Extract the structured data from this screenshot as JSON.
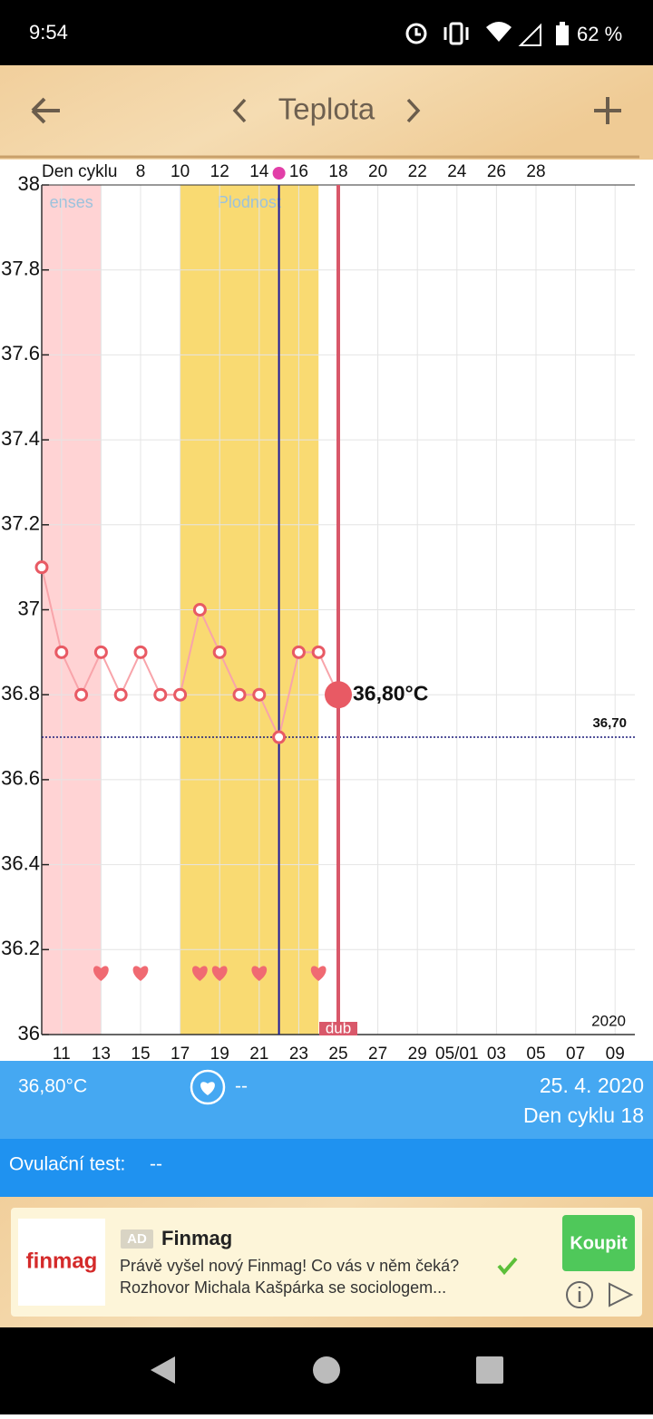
{
  "status_bar": {
    "time": "9:54",
    "battery": "62 %"
  },
  "toolbar": {
    "title": "Teplota"
  },
  "chart_data": {
    "type": "line",
    "x_axis_label": "Den cyklu",
    "x": [
      3,
      4,
      5,
      6,
      7,
      8,
      9,
      10,
      11,
      12,
      13,
      14,
      15,
      16,
      17,
      18
    ],
    "values": [
      37.1,
      36.9,
      36.8,
      36.9,
      36.8,
      36.9,
      36.8,
      36.8,
      37.0,
      36.9,
      36.8,
      36.8,
      36.7,
      36.9,
      36.9,
      36.8
    ],
    "value_labels": [
      null,
      null,
      null,
      null,
      null,
      null,
      null,
      null,
      null,
      null,
      null,
      null,
      null,
      null,
      null,
      "36,80°C"
    ],
    "color": "#e85a64",
    "line_color": "#f8a4aa",
    "xlim": [
      3,
      33
    ],
    "ylim": [
      36,
      38
    ],
    "yticks": [
      36,
      36.2,
      36.4,
      36.6,
      36.8,
      37,
      37.2,
      37.4,
      37.6,
      37.8,
      38
    ],
    "xticks": [
      8,
      10,
      12,
      14,
      16,
      18,
      20,
      22,
      24,
      26,
      28
    ],
    "date_ticks": [
      {
        "value": 4,
        "label": "11"
      },
      {
        "value": 6,
        "label": "13"
      },
      {
        "value": 8,
        "label": "15"
      },
      {
        "value": 10,
        "label": "17"
      },
      {
        "value": 12,
        "label": "19"
      },
      {
        "value": 14,
        "label": "21"
      },
      {
        "value": 16,
        "label": "23"
      },
      {
        "value": 18,
        "label": "25"
      },
      {
        "value": 20,
        "label": "27"
      },
      {
        "value": 22,
        "label": "29"
      },
      {
        "value": 24,
        "label": "05/01"
      },
      {
        "value": 26,
        "label": "03"
      },
      {
        "value": 28,
        "label": "05"
      },
      {
        "value": 30,
        "label": "07"
      },
      {
        "value": 32,
        "label": "09"
      }
    ],
    "month_label": {
      "value": 18,
      "label": "dub"
    },
    "year_label": "2020",
    "bands": [
      {
        "label": "enses",
        "range": [
          3,
          6
        ],
        "color": "#ffd3d4"
      },
      {
        "label": "Plodnost",
        "range": [
          10,
          17
        ],
        "color": "#f9da72"
      }
    ],
    "ovulation_day": 15,
    "cover_line": {
      "value": 36.7,
      "label": "36,70"
    },
    "intercourse_days": [
      6,
      8,
      11,
      12,
      14,
      17
    ],
    "grid": true
  },
  "info_bar": {
    "temperature": "36,80°C",
    "sign": "--",
    "date": "25. 4. 2020",
    "cycle_day": "Den cyklu 18"
  },
  "ovulation_test": {
    "label": "Ovulační test:",
    "value": "--"
  },
  "ad": {
    "logo": "finmag",
    "badge": "AD",
    "title": "Finmag",
    "line1": "Právě vyšel nový Finmag! Co vás v něm čeká?",
    "line2": "Rozhovor Michala Kašpárka se sociologem...",
    "button": "Koupit"
  }
}
